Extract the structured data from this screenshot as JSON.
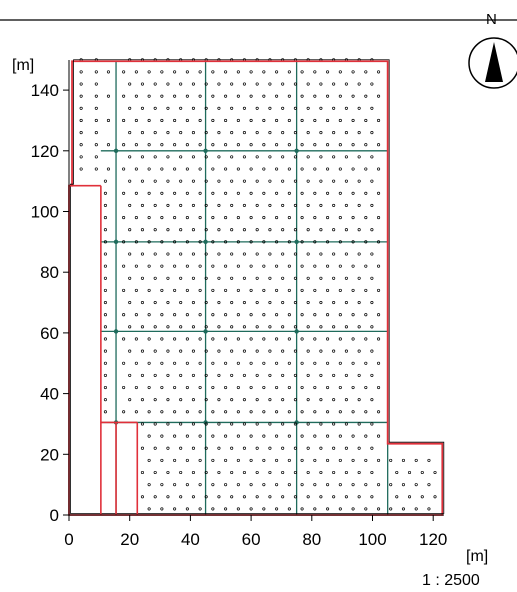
{
  "chart_data": {
    "type": "site-plan",
    "x_unit": "[m]",
    "y_unit": "[m]",
    "x_ticks": [
      0,
      20,
      40,
      60,
      80,
      100,
      120
    ],
    "y_ticks": [
      0,
      20,
      40,
      60,
      80,
      100,
      120,
      140
    ],
    "xlim": [
      0,
      124
    ],
    "ylim": [
      0,
      150
    ],
    "scale": "1 : 2500",
    "north_label": "N",
    "outline": [
      [
        0,
        0
      ],
      [
        0,
        108.5
      ],
      [
        1,
        108.5
      ],
      [
        1,
        149.5
      ],
      [
        105,
        149.5
      ],
      [
        105,
        23.5
      ],
      [
        123,
        23.5
      ],
      [
        123,
        0
      ]
    ],
    "inner_lines": [
      {
        "from": [
          0,
          108.5
        ],
        "to": [
          10.5,
          108.5
        ]
      },
      {
        "from": [
          10.5,
          108.5
        ],
        "to": [
          10.5,
          0
        ]
      },
      {
        "from": [
          15.5,
          30.5
        ],
        "to": [
          15.5,
          0
        ]
      },
      {
        "from": [
          10.5,
          30.5
        ],
        "to": [
          22.5,
          30.5
        ]
      },
      {
        "from": [
          22.5,
          30.5
        ],
        "to": [
          22.5,
          0
        ]
      }
    ],
    "grid_x": [
      15.5,
      45,
      75,
      105
    ],
    "grid_y": [
      30.5,
      60.5,
      90,
      120
    ],
    "grid_y_extent": [
      10.5,
      105
    ],
    "grid_x_extent": [
      0,
      149.5
    ],
    "module_points_y": [
      0,
      4,
      8,
      12,
      16,
      20,
      24,
      28,
      32,
      36,
      40,
      44,
      48,
      52,
      56,
      60,
      64,
      68,
      72,
      76,
      80,
      84,
      88,
      92,
      96,
      100,
      104,
      108,
      112,
      116,
      120,
      124,
      128,
      132,
      136,
      140,
      144,
      148
    ],
    "colors": {
      "outline": "#e0303a",
      "grid": "#1f6b5c",
      "frame": "#000000",
      "points": "#000000"
    }
  }
}
